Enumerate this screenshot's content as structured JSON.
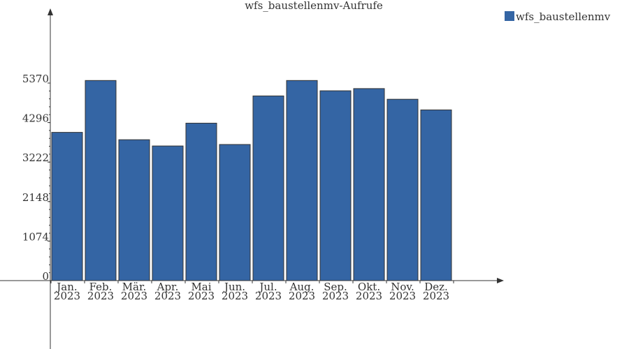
{
  "chart_data": {
    "type": "bar",
    "title": "wfs_baustellenmv-Aufrufe",
    "categories": [
      [
        "Jan.",
        "2023"
      ],
      [
        "Feb.",
        "2023"
      ],
      [
        "Mär.",
        "2023"
      ],
      [
        "Apr.",
        "2023"
      ],
      [
        "Mai",
        "2023"
      ],
      [
        "Jun.",
        "2023"
      ],
      [
        "Jul.",
        "2023"
      ],
      [
        "Aug.",
        "2023"
      ],
      [
        "Sep.",
        "2023"
      ],
      [
        "Okt.",
        "2023"
      ],
      [
        "Nov.",
        "2023"
      ],
      [
        "Dez.",
        "2023"
      ]
    ],
    "series": [
      {
        "name": "wfs_baustellenmv",
        "color": "#3465a4",
        "values": [
          4030,
          5440,
          3830,
          3660,
          4280,
          3700,
          5020,
          5440,
          5160,
          5220,
          4930,
          4640
        ]
      }
    ],
    "yticks": [
      0,
      1074,
      2148,
      3222,
      4296,
      5370
    ],
    "ylim": [
      0,
      5370
    ],
    "legend_position": "top-right",
    "grid": false
  }
}
